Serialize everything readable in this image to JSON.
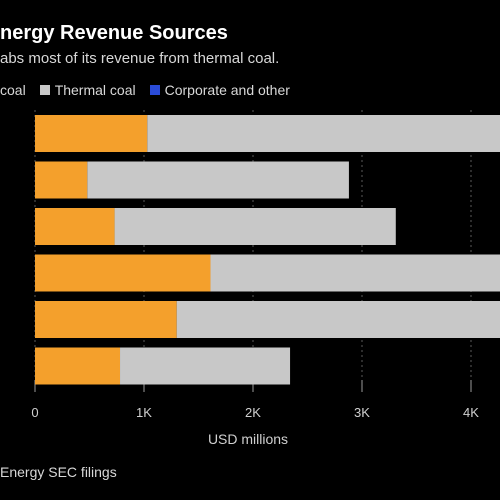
{
  "header": {
    "title": "nergy Revenue Sources",
    "subtitle": "abs most of its revenue from thermal coal."
  },
  "legend": [
    {
      "label": "coal",
      "color": "#f4a02c",
      "swatch": false
    },
    {
      "label": "Thermal coal",
      "color": "#c8c8c8",
      "swatch": true
    },
    {
      "label": "Corporate and other",
      "color": "#2a4bd7",
      "swatch": true
    }
  ],
  "source": "Energy SEC filings",
  "chart_data": {
    "type": "bar",
    "orientation": "horizontal",
    "stacked": true,
    "categories": [
      "",
      "",
      "",
      "",
      "",
      ""
    ],
    "series": [
      {
        "name": "coal",
        "color": "#f4a02c",
        "values": [
          1030,
          480,
          730,
          1610,
          1300,
          780
        ]
      },
      {
        "name": "Thermal coal",
        "color": "#c8c8c8",
        "values": [
          3270,
          2400,
          2580,
          2690,
          3000,
          1560
        ]
      },
      {
        "name": "Corporate and other",
        "color": "#2a4bd7",
        "values": [
          0,
          0,
          0,
          0,
          0,
          0
        ]
      }
    ],
    "xlim": [
      0,
      4000
    ],
    "xticks": [
      0,
      1000,
      2000,
      3000,
      4000
    ],
    "xtick_labels": [
      "0",
      "1K",
      "2K",
      "3K",
      "4K"
    ],
    "xlabel": "USD millions",
    "grid": "vertical dashed"
  }
}
